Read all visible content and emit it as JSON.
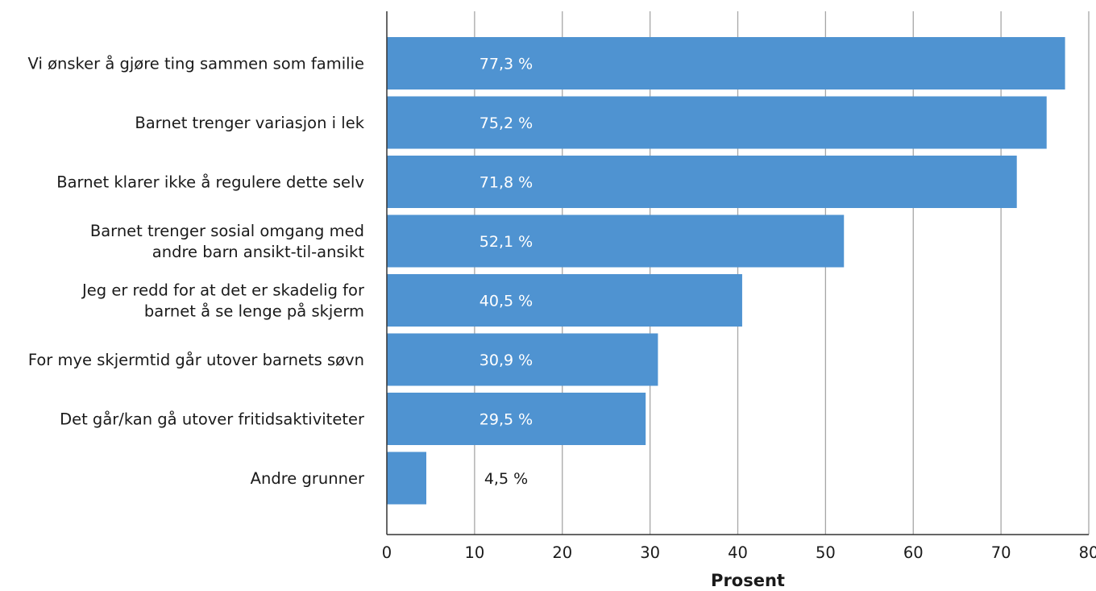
{
  "chart_data": {
    "type": "bar",
    "orientation": "horizontal",
    "categories": [
      [
        "Vi ønsker å gjøre ting sammen som familie"
      ],
      [
        "Barnet trenger variasjon i lek"
      ],
      [
        "Barnet  klarer ikke å regulere dette selv"
      ],
      [
        "Barnet trenger sosial omgang med",
        "andre barn ansikt-til-ansikt"
      ],
      [
        "Jeg er redd for at det er skadelig for",
        "barnet å se lenge på skjerm"
      ],
      [
        "For mye skjermtid går utover barnets søvn"
      ],
      [
        "Det går/kan gå utover fritidsaktiviteter"
      ],
      [
        "Andre grunner"
      ]
    ],
    "values": [
      77.3,
      75.2,
      71.8,
      52.1,
      40.5,
      30.9,
      29.5,
      4.5
    ],
    "value_labels": [
      "77,3 %",
      "75,2 %",
      "71,8 %",
      "52,1 %",
      "40,5 %",
      "30,9 %",
      "29,5 %",
      "4,5 %"
    ],
    "xlabel": "Prosent",
    "xlim": [
      0,
      80
    ],
    "xticks": [
      0,
      10,
      20,
      30,
      40,
      50,
      60,
      70,
      80
    ],
    "grid": "vertical",
    "bar_color": "#4f93d1",
    "grid_color": "#a6a6a6",
    "axis_color": "#333333",
    "label_inside_color": "#ffffff",
    "label_outside_color": "#1a1a1a"
  }
}
